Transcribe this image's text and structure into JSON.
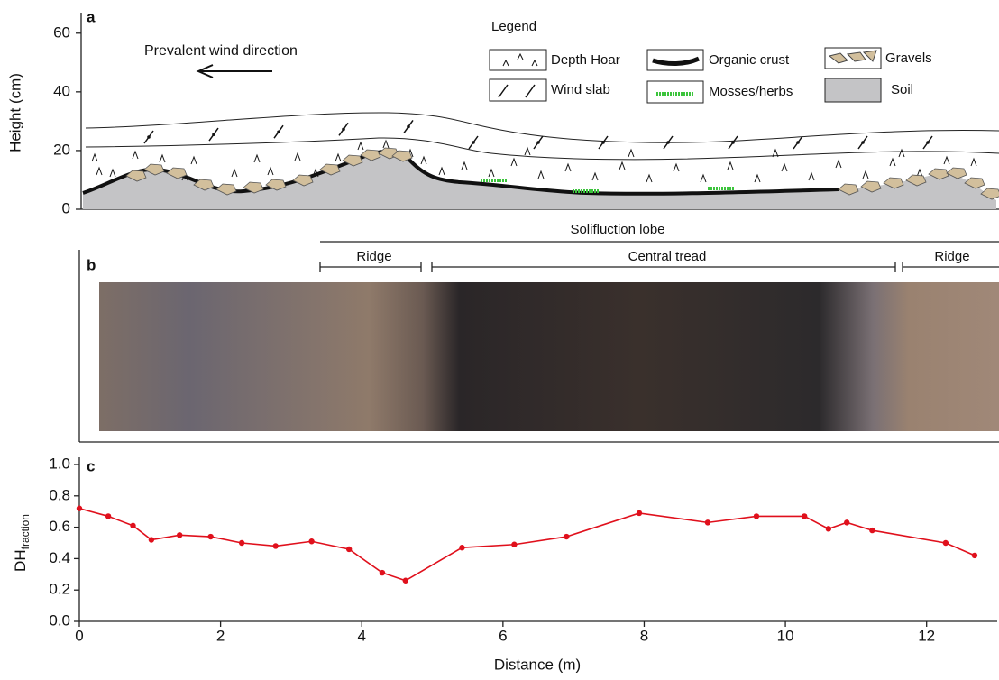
{
  "panel_a": {
    "label": "a",
    "ylabel": "Height (cm)",
    "ylim": [
      0,
      67
    ],
    "yticks": [
      0,
      20,
      40,
      60
    ],
    "wind_text": "Prevalent wind direction",
    "legend_title": "Legend",
    "legend": [
      "Depth Hoar",
      "Wind slab",
      "Organic crust",
      "Mosses/herbs",
      "Gravels",
      "Soil"
    ]
  },
  "panel_b": {
    "label": "b",
    "lobe": "Solifluction lobe",
    "sections": [
      "Ridge",
      "Central tread",
      "Ridge"
    ]
  },
  "chart_data": {
    "type": "line",
    "label": "c",
    "xlabel": "Distance (m)",
    "ylabel": "DH",
    "ylabel_sub": "fraction",
    "x": [
      0,
      0.41,
      0.76,
      1.02,
      1.42,
      1.86,
      2.3,
      2.78,
      3.29,
      3.82,
      4.29,
      4.62,
      5.42,
      6.16,
      6.9,
      7.93,
      8.9,
      9.59,
      10.27,
      10.61,
      10.87,
      11.23,
      12.27,
      12.68
    ],
    "series": [
      {
        "color": "#e0101c",
        "values": [
          0.72,
          0.67,
          0.61,
          0.52,
          0.55,
          0.54,
          0.5,
          0.48,
          0.51,
          0.46,
          0.31,
          0.26,
          0.47,
          0.49,
          0.54,
          0.69,
          0.63,
          0.67,
          0.67,
          0.59,
          0.63,
          0.58,
          0.5,
          0.42
        ]
      }
    ],
    "xlim": [
      0,
      13
    ],
    "xticks": [
      0,
      2,
      4,
      6,
      8,
      10,
      12
    ],
    "ylim": [
      0,
      1
    ],
    "yticks": [
      {
        "value": 0,
        "label": "0.0"
      },
      {
        "value": 0.2,
        "label": "0.2"
      },
      {
        "value": 0.4,
        "label": "0.4"
      },
      {
        "value": 0.6,
        "label": "0.6"
      },
      {
        "value": 0.8,
        "label": "0.8"
      },
      {
        "value": 1,
        "label": "1.0"
      }
    ]
  }
}
